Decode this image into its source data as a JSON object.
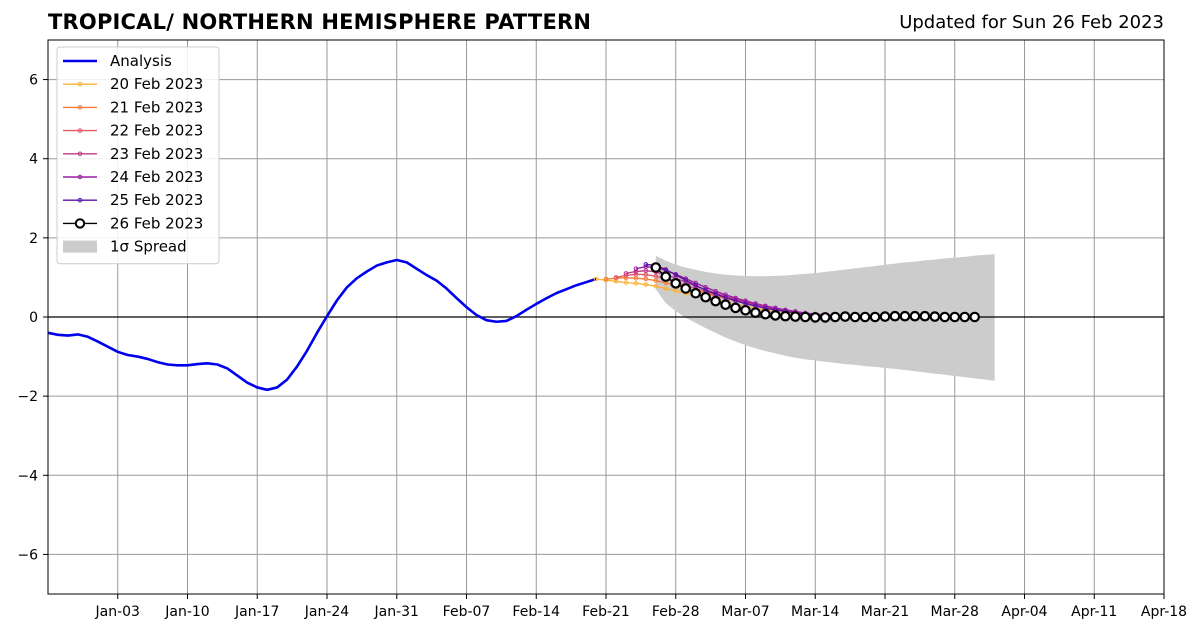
{
  "header": {
    "title": "TROPICAL/ NORTHERN HEMISPHERE PATTERN",
    "updated": "Updated for Sun 26 Feb 2023"
  },
  "chart_data": {
    "type": "line",
    "ylim": [
      -7,
      7
    ],
    "xlim": [
      "2022-12-27",
      "2023-04-18"
    ],
    "yticks": [
      -6,
      -4,
      -2,
      0,
      2,
      4,
      6
    ],
    "xticks": [
      {
        "date": "2023-01-03",
        "label": "Jan-03"
      },
      {
        "date": "2023-01-10",
        "label": "Jan-10"
      },
      {
        "date": "2023-01-17",
        "label": "Jan-17"
      },
      {
        "date": "2023-01-24",
        "label": "Jan-24"
      },
      {
        "date": "2023-01-31",
        "label": "Jan-31"
      },
      {
        "date": "2023-02-07",
        "label": "Feb-07"
      },
      {
        "date": "2023-02-14",
        "label": "Feb-14"
      },
      {
        "date": "2023-02-21",
        "label": "Feb-21"
      },
      {
        "date": "2023-02-28",
        "label": "Feb-28"
      },
      {
        "date": "2023-03-07",
        "label": "Mar-07"
      },
      {
        "date": "2023-03-14",
        "label": "Mar-14"
      },
      {
        "date": "2023-03-21",
        "label": "Mar-21"
      },
      {
        "date": "2023-03-28",
        "label": "Mar-28"
      },
      {
        "date": "2023-04-04",
        "label": "Apr-04"
      },
      {
        "date": "2023-04-11",
        "label": "Apr-11"
      },
      {
        "date": "2023-04-18",
        "label": "Apr-18"
      }
    ],
    "grid": true,
    "legend_position": "top-left",
    "analysis": {
      "name": "Analysis",
      "color": "#0000ee",
      "start_date": "2022-12-27",
      "values": [
        -0.4,
        -0.45,
        -0.47,
        -0.44,
        -0.5,
        -0.62,
        -0.75,
        -0.88,
        -0.96,
        -1.0,
        -1.06,
        -1.14,
        -1.2,
        -1.22,
        -1.22,
        -1.19,
        -1.17,
        -1.2,
        -1.3,
        -1.48,
        -1.66,
        -1.78,
        -1.84,
        -1.78,
        -1.58,
        -1.25,
        -0.85,
        -0.4,
        0.02,
        0.42,
        0.75,
        0.98,
        1.15,
        1.3,
        1.38,
        1.44,
        1.38,
        1.22,
        1.06,
        0.92,
        0.72,
        0.48,
        0.25,
        0.05,
        -0.08,
        -0.12,
        -0.1,
        0.02,
        0.18,
        0.33,
        0.47,
        0.6,
        0.7,
        0.8,
        0.88,
        0.96
      ]
    },
    "forecasts": [
      {
        "name": "20 Feb 2023",
        "color": "#fbb33a",
        "start_date": "2023-02-20",
        "values": [
          0.96,
          0.93,
          0.9,
          0.87,
          0.85,
          0.82,
          0.78,
          0.72,
          0.66,
          0.6,
          0.55,
          0.5,
          0.44,
          0.38,
          0.32,
          0.27,
          0.22,
          0.18,
          0.14,
          0.11,
          0.08,
          0.06,
          0.05,
          0.04,
          0.03,
          0.02
        ]
      },
      {
        "name": "21 Feb 2023",
        "color": "#f37e3a",
        "start_date": "2023-02-21",
        "values": [
          0.96,
          0.98,
          0.99,
          0.98,
          0.96,
          0.92,
          0.86,
          0.8,
          0.74,
          0.66,
          0.6,
          0.53,
          0.47,
          0.41,
          0.35,
          0.3,
          0.25,
          0.2,
          0.16,
          0.12,
          0.09,
          0.06,
          0.04,
          0.03,
          0.02
        ]
      },
      {
        "name": "22 Feb 2023",
        "color": "#e15b6a",
        "start_date": "2023-02-22",
        "values": [
          1.0,
          1.05,
          1.08,
          1.07,
          1.03,
          0.96,
          0.88,
          0.8,
          0.72,
          0.64,
          0.56,
          0.49,
          0.42,
          0.36,
          0.3,
          0.25,
          0.2,
          0.16,
          0.12,
          0.09,
          0.07,
          0.05,
          0.03,
          0.02
        ]
      },
      {
        "name": "23 Feb 2023",
        "color": "#c13b86",
        "start_date": "2023-02-23",
        "values": [
          1.1,
          1.15,
          1.17,
          1.14,
          1.07,
          0.98,
          0.88,
          0.78,
          0.69,
          0.6,
          0.52,
          0.45,
          0.38,
          0.32,
          0.26,
          0.21,
          0.17,
          0.13,
          0.1,
          0.07,
          0.05,
          0.04,
          0.03
        ]
      },
      {
        "name": "24 Feb 2023",
        "color": "#9a1fa2",
        "start_date": "2023-02-24",
        "values": [
          1.22,
          1.27,
          1.25,
          1.18,
          1.08,
          0.97,
          0.86,
          0.75,
          0.65,
          0.56,
          0.48,
          0.41,
          0.34,
          0.28,
          0.23,
          0.18,
          0.14,
          0.1,
          0.07,
          0.05,
          0.03,
          0.02
        ]
      },
      {
        "name": "25 Feb 2023",
        "color": "#5a12a6",
        "start_date": "2023-02-25",
        "values": [
          1.33,
          1.3,
          1.2,
          1.06,
          0.93,
          0.8,
          0.68,
          0.58,
          0.49,
          0.41,
          0.34,
          0.28,
          0.22,
          0.18,
          0.14,
          0.1,
          0.07,
          0.05,
          0.03,
          0.02,
          0.01
        ]
      }
    ],
    "latest": {
      "name": "26 Feb 2023",
      "color": "#000000",
      "start_date": "2023-02-26",
      "values": [
        1.25,
        1.02,
        0.85,
        0.72,
        0.6,
        0.5,
        0.4,
        0.31,
        0.23,
        0.17,
        0.11,
        0.07,
        0.04,
        0.02,
        0.01,
        0.0,
        -0.01,
        -0.01,
        0.0,
        0.01,
        0.0,
        0.0,
        0.0,
        0.01,
        0.02,
        0.02,
        0.02,
        0.02,
        0.01,
        0.0,
        0.0,
        0.0,
        0.0
      ]
    },
    "spread": {
      "name": "1σ Spread",
      "color": "#cccccc",
      "start_date": "2023-02-26",
      "upper": [
        1.55,
        1.42,
        1.32,
        1.25,
        1.19,
        1.14,
        1.1,
        1.07,
        1.05,
        1.04,
        1.03,
        1.03,
        1.04,
        1.05,
        1.07,
        1.09,
        1.11,
        1.14,
        1.17,
        1.2,
        1.23,
        1.26,
        1.29,
        1.32,
        1.35,
        1.38,
        1.4,
        1.43,
        1.45,
        1.48,
        1.5,
        1.52,
        1.55,
        1.57,
        1.59
      ],
      "lower": [
        0.7,
        0.35,
        0.15,
        -0.02,
        -0.15,
        -0.28,
        -0.4,
        -0.52,
        -0.62,
        -0.71,
        -0.79,
        -0.86,
        -0.92,
        -0.98,
        -1.03,
        -1.07,
        -1.1,
        -1.13,
        -1.16,
        -1.19,
        -1.21,
        -1.24,
        -1.26,
        -1.29,
        -1.31,
        -1.34,
        -1.37,
        -1.4,
        -1.43,
        -1.46,
        -1.49,
        -1.52,
        -1.55,
        -1.58,
        -1.61
      ]
    },
    "legend": [
      "Analysis",
      "20 Feb 2023",
      "21 Feb 2023",
      "22 Feb 2023",
      "23 Feb 2023",
      "24 Feb 2023",
      "25 Feb 2023",
      "26 Feb 2023",
      "1σ Spread"
    ]
  }
}
